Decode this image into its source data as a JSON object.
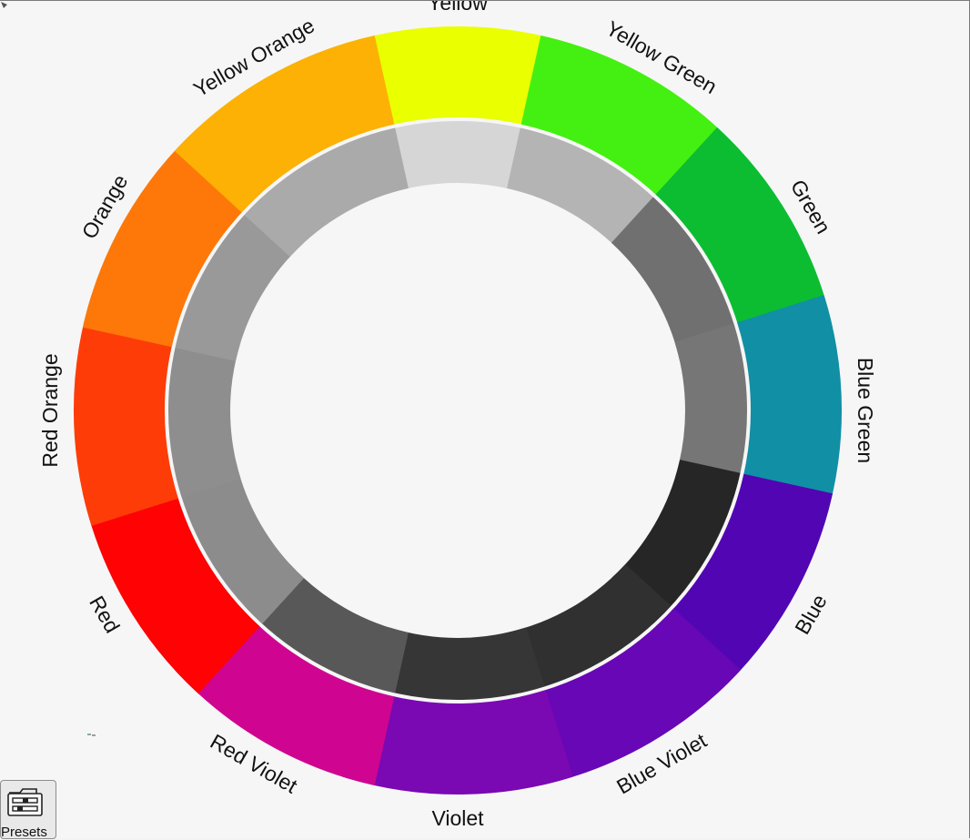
{
  "wheel": {
    "segments": [
      {
        "label": "Yellow",
        "color": "#eaff00",
        "value_color": "#d6d6d6"
      },
      {
        "label": "Yellow Green",
        "color": "#44f011",
        "value_color": "#b4b4b4"
      },
      {
        "label": "Green",
        "color": "#0cbd32",
        "value_color": "#707070"
      },
      {
        "label": "Blue Green",
        "color": "#118fa5",
        "value_color": "#767676"
      },
      {
        "label": "Blue",
        "color": "#5205b3",
        "value_color": "#262626"
      },
      {
        "label": "Blue Violet",
        "color": "#6707b5",
        "value_color": "#303030"
      },
      {
        "label": "Violet",
        "color": "#7a08b3",
        "value_color": "#363636"
      },
      {
        "label": "Red Violet",
        "color": "#cf0591",
        "value_color": "#585858"
      },
      {
        "label": "Red",
        "color": "#fe0204",
        "value_color": "#8c8c8c"
      },
      {
        "label": "Red Orange",
        "color": "#fe3c08",
        "value_color": "#8e8e8e"
      },
      {
        "label": "Orange",
        "color": "#fd7808",
        "value_color": "#999999"
      },
      {
        "label": "Yellow Orange",
        "color": "#fcb104",
        "value_color": "#aaaaaa"
      }
    ]
  },
  "presets": {
    "label": "Presets",
    "icon": "folder-sliders-icon"
  }
}
